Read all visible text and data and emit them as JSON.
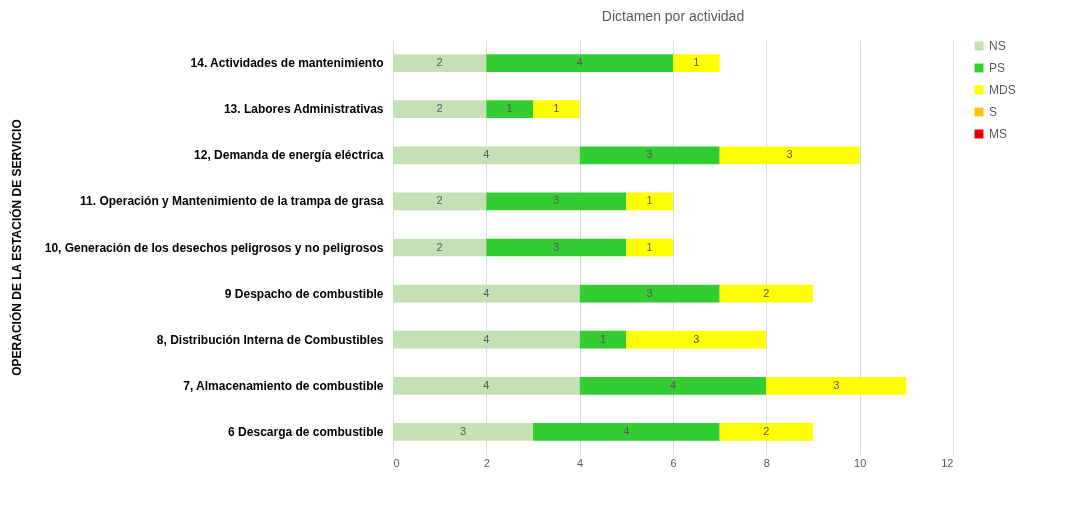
{
  "chart_data": {
    "type": "bar",
    "orientation": "horizontal",
    "stacked": true,
    "title": "Dictamen por actividad",
    "ylabel": "OPERACIÓN DE LA ESTACIÓN DE SERVICIO",
    "categories": [
      "14. Actividades de mantenimiento",
      "13. Labores Administrativas",
      "12, Demanda de energía eléctrica",
      "11. Operación y Mantenimiento de la trampa de grasa",
      "10, Generación de los desechos peligrosos y no peligrosos",
      "9 Despacho de combustible",
      "8, Distribución Interna de Combustibles",
      "7, Almacenamiento de combustible",
      "6 Descarga de combustible"
    ],
    "series": [
      {
        "name": "NS",
        "color": "#c5e0b4",
        "values": [
          2,
          2,
          4,
          2,
          2,
          4,
          4,
          4,
          3
        ]
      },
      {
        "name": "PS",
        "color": "#33cc33",
        "values": [
          4,
          1,
          3,
          3,
          3,
          3,
          1,
          4,
          4
        ]
      },
      {
        "name": "MDS",
        "color": "#ffff00",
        "values": [
          1,
          1,
          3,
          1,
          1,
          2,
          3,
          3,
          2
        ]
      },
      {
        "name": "S",
        "color": "#ffc000",
        "values": [
          null,
          null,
          null,
          null,
          null,
          null,
          null,
          null,
          null
        ]
      },
      {
        "name": "MS",
        "color": "#e00000",
        "values": [
          null,
          null,
          null,
          null,
          null,
          null,
          null,
          null,
          null
        ]
      }
    ],
    "xlim": [
      0,
      12
    ],
    "xticks": [
      0,
      2,
      4,
      6,
      8,
      10,
      12
    ],
    "grid": "x",
    "legend": "right",
    "data_labels": true
  }
}
